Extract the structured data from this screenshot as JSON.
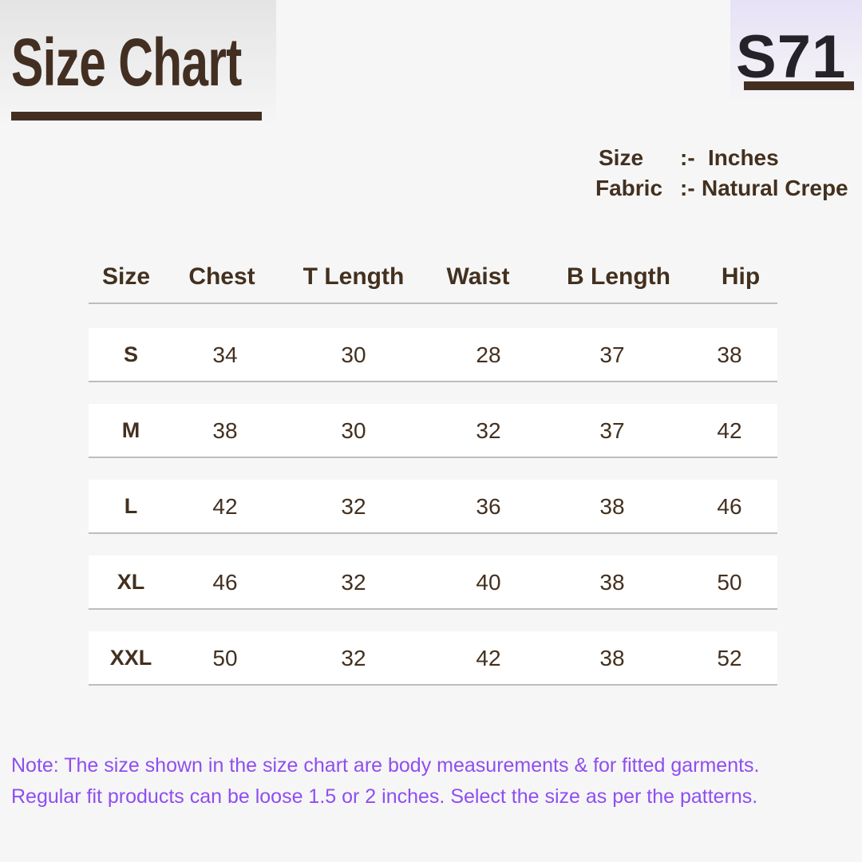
{
  "title": "Size Chart",
  "product_code": "S71",
  "meta": [
    {
      "label": "Size",
      "sep": ":-",
      "value": "Inches"
    },
    {
      "label": "Fabric",
      "sep": ":-",
      "value": "Natural Crepe"
    }
  ],
  "table": {
    "headers": [
      "Size",
      "Chest",
      "T Length",
      "Waist",
      "B Length",
      "Hip"
    ],
    "rows": [
      [
        "S",
        "34",
        "30",
        "28",
        "37",
        "38"
      ],
      [
        "M",
        "38",
        "30",
        "32",
        "37",
        "42"
      ],
      [
        "L",
        "42",
        "32",
        "36",
        "38",
        "46"
      ],
      [
        "XL",
        "46",
        "32",
        "40",
        "38",
        "50"
      ],
      [
        "XXL",
        "50",
        "32",
        "42",
        "38",
        "52"
      ]
    ]
  },
  "note": [
    "Note: The size shown in the size chart are body measurements & for fitted garments.",
    "Regular fit products can be loose 1.5 or 2 inches. Select the size as per the patterns."
  ],
  "colors": {
    "brown": "#432f22",
    "note": "#8f4ef0",
    "background": "#f6f6f6"
  }
}
